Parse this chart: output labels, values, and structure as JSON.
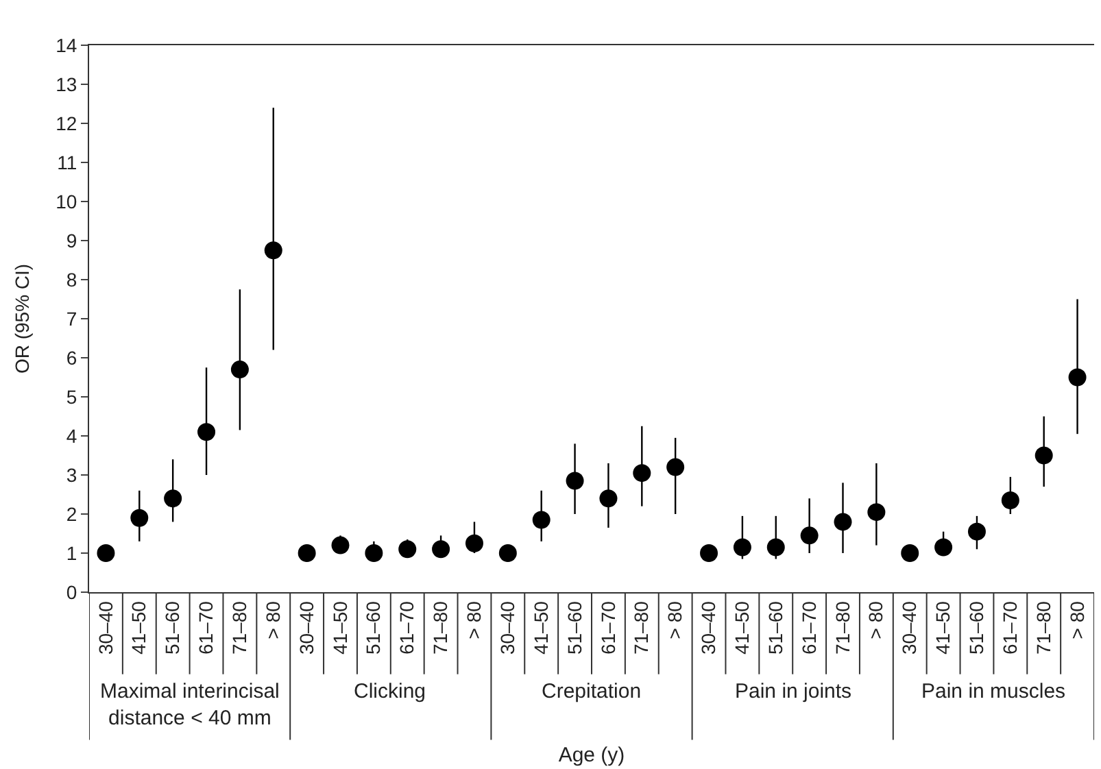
{
  "chart_data": {
    "type": "scatter",
    "xlabel": "Age (y)",
    "ylabel": "OR (95% CI)",
    "categories": [
      "30–40",
      "41–50",
      "51–60",
      "61–70",
      "71–80",
      "> 80",
      "30–40",
      "41–50",
      "51–60",
      "61–70",
      "71–80",
      "> 80",
      "30–40",
      "41–50",
      "51–60",
      "61–70",
      "71–80",
      "> 80",
      "30–40",
      "41–50",
      "51–60",
      "61–70",
      "71–80",
      "> 80",
      "30–40",
      "41–50",
      "51–60",
      "61–70",
      "71–80",
      "> 80"
    ],
    "series": [
      {
        "color": "#000000",
        "values": [
          1,
          1.9,
          2.4,
          4.1,
          5.7,
          8.75,
          1,
          1.2,
          1,
          1.1,
          1.1,
          1.25,
          1,
          1.85,
          2.85,
          2.4,
          3.05,
          3.2,
          1,
          1.15,
          1.15,
          1.45,
          1.8,
          2.05,
          1,
          1.15,
          1.55,
          2.35,
          3.5,
          5.5
        ],
        "errors": [
          null,
          [
            1.3,
            2.6
          ],
          [
            1.8,
            3.4
          ],
          [
            3.0,
            5.75
          ],
          [
            4.15,
            7.75
          ],
          [
            6.2,
            12.4
          ],
          null,
          [
            1.0,
            1.45
          ],
          [
            0.95,
            1.3
          ],
          [
            0.95,
            1.35
          ],
          [
            0.9,
            1.45
          ],
          [
            1.0,
            1.8
          ],
          null,
          [
            1.3,
            2.6
          ],
          [
            2.0,
            3.8
          ],
          [
            1.65,
            3.3
          ],
          [
            2.2,
            4.25
          ],
          [
            2.0,
            3.95
          ],
          null,
          [
            0.85,
            1.95
          ],
          [
            0.85,
            1.95
          ],
          [
            1.0,
            2.4
          ],
          [
            1.0,
            2.8
          ],
          [
            1.2,
            3.3
          ],
          null,
          [
            1.0,
            1.55
          ],
          [
            1.1,
            1.95
          ],
          [
            2.0,
            2.95
          ],
          [
            2.7,
            4.5
          ],
          [
            4.05,
            7.5
          ]
        ]
      }
    ],
    "annotations": [
      "Maximal interincisal distance < 40 mm",
      "Clicking",
      "Crepitation",
      "Pain in joints",
      "Pain in muscles"
    ],
    "ylim": [
      0,
      14
    ],
    "yticks": [
      0,
      1,
      2,
      3,
      4,
      5,
      6,
      7,
      8,
      9,
      10,
      11,
      12,
      13,
      14
    ],
    "marker": "circle"
  }
}
